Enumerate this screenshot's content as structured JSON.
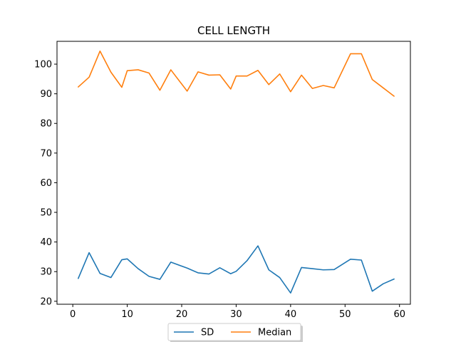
{
  "chart_data": {
    "type": "line",
    "title": "CELL LENGTH",
    "xlabel": "",
    "ylabel": "",
    "xlim": [
      -2.9,
      62.0
    ],
    "ylim": [
      19.0,
      107.7
    ],
    "xticks": [
      0,
      10,
      20,
      30,
      40,
      50,
      60
    ],
    "yticks": [
      20,
      30,
      40,
      50,
      60,
      70,
      80,
      90,
      100
    ],
    "grid": false,
    "legend": {
      "placement": "bottom-center",
      "columns": 2
    },
    "series": [
      {
        "name": "SD",
        "color": "#1f77b4",
        "x": [
          1,
          3,
          5,
          7,
          9,
          10,
          12,
          14,
          16,
          18,
          21,
          23,
          25,
          27,
          29,
          30,
          32,
          34,
          36,
          38,
          40,
          42,
          44,
          46,
          48,
          51,
          53,
          55,
          57,
          59
        ],
        "y": [
          27.7,
          36.4,
          29.4,
          28.0,
          34.0,
          34.3,
          31.0,
          28.4,
          27.4,
          33.2,
          31.2,
          29.6,
          29.2,
          31.3,
          29.3,
          30.1,
          33.7,
          38.7,
          30.6,
          28.0,
          22.8,
          31.4,
          31.0,
          30.6,
          30.7,
          34.2,
          33.9,
          23.4,
          25.9,
          27.5
        ]
      },
      {
        "name": "Median",
        "color": "#ff7f0e",
        "x": [
          1,
          3,
          5,
          7,
          9,
          10,
          12,
          14,
          16,
          18,
          21,
          23,
          25,
          27,
          29,
          30,
          32,
          34,
          36,
          38,
          40,
          42,
          44,
          46,
          48,
          51,
          53,
          55,
          57,
          59
        ],
        "y": [
          92.3,
          95.6,
          104.4,
          97.3,
          92.2,
          97.8,
          98.1,
          97.0,
          91.2,
          98.1,
          90.9,
          97.4,
          96.3,
          96.4,
          91.6,
          96.0,
          96.0,
          97.9,
          93.1,
          96.7,
          90.7,
          96.3,
          91.8,
          92.8,
          92.0,
          103.5,
          103.5,
          94.8,
          92.0,
          89.2
        ]
      }
    ]
  }
}
